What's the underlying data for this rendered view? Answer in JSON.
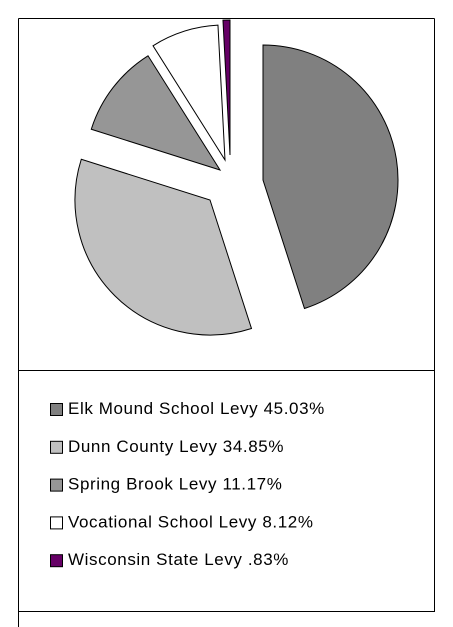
{
  "chart_data": {
    "type": "pie",
    "categories": [
      "Elk Mound School Levy",
      "Dunn County Levy",
      "Spring Brook Levy",
      "Vocational School Levy",
      "Wisconsin State Levy"
    ],
    "values": [
      45.03,
      34.85,
      11.17,
      8.12,
      0.83
    ],
    "value_labels": [
      "45.03%",
      "34.85%",
      "11.17%",
      "8.12%",
      ".83%"
    ],
    "colors": [
      "#808080",
      "#c0c0c0",
      "#969696",
      "#ffffff",
      "#660066"
    ],
    "legend": "bottom"
  }
}
